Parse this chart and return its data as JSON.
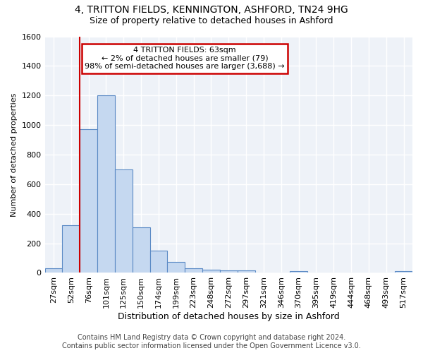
{
  "title1": "4, TRITTON FIELDS, KENNINGTON, ASHFORD, TN24 9HG",
  "title2": "Size of property relative to detached houses in Ashford",
  "xlabel": "Distribution of detached houses by size in Ashford",
  "ylabel": "Number of detached properties",
  "footer1": "Contains HM Land Registry data © Crown copyright and database right 2024.",
  "footer2": "Contains public sector information licensed under the Open Government Licence v3.0.",
  "bin_labels": [
    "27sqm",
    "52sqm",
    "76sqm",
    "101sqm",
    "125sqm",
    "150sqm",
    "174sqm",
    "199sqm",
    "223sqm",
    "248sqm",
    "272sqm",
    "297sqm",
    "321sqm",
    "346sqm",
    "370sqm",
    "395sqm",
    "419sqm",
    "444sqm",
    "468sqm",
    "493sqm",
    "517sqm"
  ],
  "bar_values": [
    30,
    320,
    970,
    1200,
    700,
    310,
    150,
    75,
    30,
    20,
    15,
    15,
    0,
    0,
    10,
    0,
    0,
    0,
    0,
    0,
    10
  ],
  "bar_color": "#c5d8f0",
  "bar_edge_color": "#5b8ac5",
  "property_line_x": 1.5,
  "annotation_title": "4 TRITTON FIELDS: 63sqm",
  "annotation_line1": "← 2% of detached houses are smaller (79)",
  "annotation_line2": "98% of semi-detached houses are larger (3,688) →",
  "annotation_box_color": "#ffffff",
  "annotation_box_edge_color": "#cc0000",
  "red_line_color": "#cc0000",
  "ylim": [
    0,
    1600
  ],
  "yticks": [
    0,
    200,
    400,
    600,
    800,
    1000,
    1200,
    1400,
    1600
  ],
  "background_color": "#eef2f8",
  "grid_color": "#ffffff",
  "title1_fontsize": 10,
  "title2_fontsize": 9,
  "xlabel_fontsize": 9,
  "ylabel_fontsize": 8,
  "tick_fontsize": 8,
  "footer_fontsize": 7
}
